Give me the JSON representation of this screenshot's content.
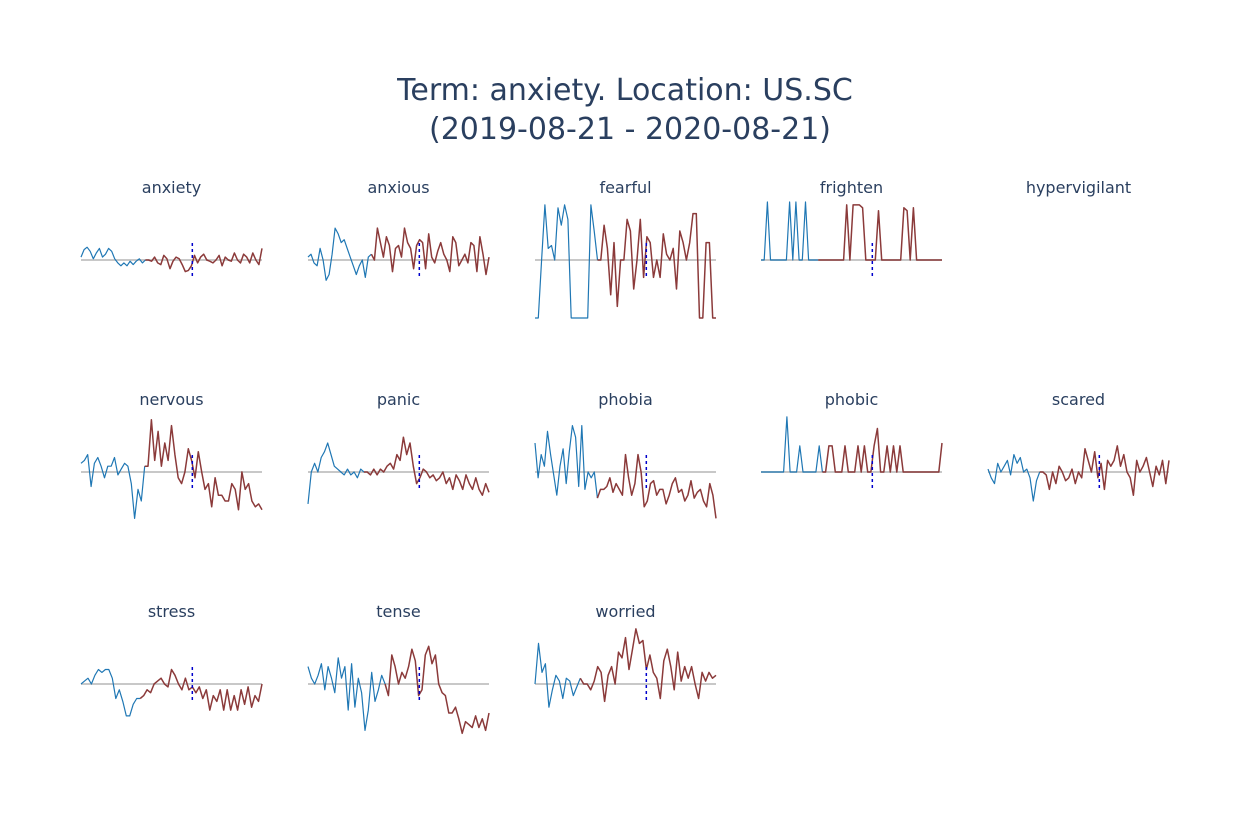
{
  "title": {
    "line1": "Term: anxiety. Location: US.SC",
    "line2": "(2019-08-21 - 2020-08-21)"
  },
  "colors": {
    "before": "#1f77b4",
    "after": "#8b3a3a",
    "baseline": "#c8c8c8",
    "marker": "#0000cc",
    "title": "#2a3f5f"
  },
  "chart_data": {
    "type": "line",
    "layout": "small-multiples",
    "x": [
      "2019-08-21",
      "2020-08-21"
    ],
    "shared_x_range": [
      "2019-08-21",
      "2020-08-21"
    ],
    "y_range": [
      -1,
      1
    ],
    "marker_dashed_vertical": true,
    "panels": [
      {
        "name": "anxiety",
        "before": [
          0.05,
          0.18,
          0.22,
          0.15,
          0.02,
          0.12,
          0.2,
          0.05,
          0.1,
          0.2,
          0.15,
          0.02,
          -0.05,
          -0.1,
          -0.05,
          -0.1,
          -0.02,
          -0.08,
          -0.02,
          0.02,
          -0.05,
          0.0
        ],
        "after": [
          0.0,
          -0.02,
          0.05,
          -0.05,
          -0.08,
          0.08,
          0.02,
          -0.15,
          -0.02,
          0.05,
          0.02,
          -0.08,
          -0.2,
          -0.18,
          -0.1,
          0.08,
          -0.05,
          0.05,
          0.1,
          0.0,
          -0.02,
          -0.05,
          0.0,
          0.08,
          -0.1,
          0.05,
          0.0,
          -0.02,
          0.12,
          0.0,
          -0.05,
          0.1,
          0.05,
          -0.05,
          0.12,
          0.0,
          -0.08,
          0.2
        ]
      },
      {
        "name": "anxious",
        "before": [
          0.05,
          0.1,
          -0.05,
          -0.1,
          0.2,
          0.0,
          -0.35,
          -0.25,
          0.1,
          0.55,
          0.45,
          0.3,
          0.35,
          0.2,
          0.05,
          -0.1,
          -0.25,
          -0.1,
          0.0,
          -0.3,
          0.05,
          0.1
        ],
        "after": [
          0.0,
          0.55,
          0.3,
          0.05,
          0.4,
          0.25,
          -0.2,
          0.2,
          0.25,
          0.05,
          0.55,
          0.3,
          0.2,
          -0.15,
          0.25,
          0.35,
          0.3,
          -0.15,
          0.45,
          0.05,
          -0.05,
          0.15,
          0.3,
          0.1,
          0.0,
          -0.2,
          0.4,
          0.3,
          -0.1,
          0.0,
          0.1,
          -0.05,
          0.3,
          0.25,
          -0.2,
          0.4,
          0.1,
          -0.25,
          0.05
        ]
      },
      {
        "name": "fearful",
        "before": [
          -1.0,
          -1.0,
          0.0,
          0.95,
          0.2,
          0.25,
          0.0,
          0.9,
          0.6,
          0.95,
          0.7,
          -1.0,
          -1.0,
          -1.0,
          -1.0,
          -1.0,
          -1.0,
          0.95,
          0.5,
          0.0
        ],
        "after": [
          0.0,
          0.6,
          0.2,
          -0.6,
          0.3,
          -0.8,
          0.0,
          0.0,
          0.7,
          0.5,
          -0.5,
          0.0,
          0.7,
          -0.3,
          0.4,
          0.3,
          -0.3,
          0.0,
          -0.3,
          0.45,
          0.1,
          0.0,
          0.2,
          -0.5,
          0.5,
          0.3,
          0.0,
          0.3,
          0.8,
          0.8,
          -1.0,
          -1.0,
          0.3,
          0.3,
          -1.0,
          -1.0
        ]
      },
      {
        "name": "frighten",
        "before": [
          0.0,
          0.0,
          1.0,
          0.0,
          0.0,
          0.0,
          0.0,
          0.0,
          0.0,
          1.0,
          0.0,
          1.0,
          0.0,
          0.0,
          1.0,
          0.0,
          0.0,
          0.0,
          0.0
        ],
        "after": [
          0.0,
          0.0,
          0.0,
          0.0,
          0.0,
          0.0,
          0.0,
          0.0,
          0.95,
          0.0,
          0.95,
          0.95,
          0.95,
          0.9,
          0.0,
          0.0,
          0.0,
          0.0,
          0.85,
          0.0,
          0.0,
          0.0,
          0.0,
          0.0,
          0.0,
          0.0,
          0.9,
          0.85,
          0.0,
          0.9,
          0.0,
          0.0,
          0.0,
          0.0,
          0.0,
          0.0,
          0.0,
          0.0,
          0.0
        ]
      },
      {
        "name": "hypervigilant",
        "before": [],
        "after": []
      },
      {
        "name": "nervous",
        "before": [
          0.15,
          0.2,
          0.3,
          -0.25,
          0.15,
          0.25,
          0.1,
          -0.1,
          0.1,
          0.1,
          0.25,
          -0.05,
          0.05,
          0.15,
          0.1,
          -0.2,
          -0.8,
          -0.3,
          -0.5,
          0.1
        ],
        "after": [
          0.1,
          0.9,
          0.2,
          0.7,
          0.1,
          0.5,
          0.2,
          0.8,
          0.3,
          -0.1,
          -0.2,
          0.0,
          0.4,
          0.2,
          -0.1,
          0.35,
          0.0,
          -0.3,
          -0.2,
          -0.6,
          -0.1,
          -0.4,
          -0.4,
          -0.5,
          -0.5,
          -0.2,
          -0.3,
          -0.65,
          0.0,
          -0.3,
          -0.2,
          -0.5,
          -0.6,
          -0.55,
          -0.65
        ]
      },
      {
        "name": "panic",
        "before": [
          -0.55,
          0.0,
          0.15,
          0.0,
          0.25,
          0.35,
          0.5,
          0.3,
          0.1,
          0.05,
          0.0,
          -0.05,
          0.05,
          -0.05,
          0.0,
          -0.1,
          0.05,
          0.0
        ],
        "after": [
          0.0,
          -0.05,
          0.05,
          -0.05,
          0.05,
          0.0,
          0.1,
          0.15,
          0.05,
          0.3,
          0.2,
          0.6,
          0.3,
          0.5,
          0.1,
          -0.2,
          -0.1,
          0.05,
          0.0,
          -0.1,
          -0.05,
          -0.15,
          -0.1,
          0.0,
          -0.2,
          -0.1,
          -0.3,
          -0.05,
          -0.15,
          -0.3,
          -0.05,
          -0.2,
          -0.3,
          -0.1,
          -0.3,
          -0.4,
          -0.2,
          -0.35
        ]
      },
      {
        "name": "phobia",
        "before": [
          0.5,
          -0.1,
          0.3,
          0.1,
          0.7,
          0.3,
          -0.05,
          -0.4,
          0.1,
          0.4,
          -0.2,
          0.35,
          0.8,
          0.6,
          -0.25,
          0.8,
          -0.3,
          0.0,
          -0.1,
          0.0,
          -0.45
        ],
        "after": [
          -0.3,
          -0.3,
          -0.25,
          -0.1,
          -0.35,
          -0.2,
          -0.3,
          -0.4,
          0.3,
          -0.1,
          -0.4,
          -0.2,
          0.3,
          0.0,
          -0.6,
          -0.5,
          -0.2,
          -0.15,
          -0.4,
          -0.3,
          -0.3,
          -0.55,
          -0.4,
          -0.2,
          -0.1,
          -0.35,
          -0.3,
          -0.5,
          -0.4,
          -0.15,
          -0.45,
          -0.35,
          -0.3,
          -0.5,
          -0.6,
          -0.2,
          -0.4,
          -0.8
        ]
      },
      {
        "name": "phobic",
        "before": [
          0.0,
          0.0,
          0.0,
          0.0,
          0.0,
          0.0,
          0.0,
          0.0,
          0.95,
          0.0,
          0.0,
          0.0,
          0.45,
          0.0,
          0.0,
          0.0,
          0.0,
          0.0,
          0.45,
          0.0
        ],
        "after": [
          0.0,
          0.45,
          0.45,
          0.0,
          0.0,
          0.0,
          0.45,
          0.0,
          0.0,
          0.0,
          0.45,
          0.0,
          0.45,
          0.0,
          0.0,
          0.45,
          0.75,
          0.0,
          0.0,
          0.45,
          0.0,
          0.45,
          0.0,
          0.45,
          0.0,
          0.0,
          0.0,
          0.0,
          0.0,
          0.0,
          0.0,
          0.0,
          0.0,
          0.0,
          0.0,
          0.0,
          0.5
        ]
      },
      {
        "name": "scared",
        "before": [
          0.05,
          -0.1,
          -0.2,
          0.15,
          0.0,
          0.1,
          0.2,
          -0.05,
          0.3,
          0.15,
          0.25,
          0.0,
          0.05,
          -0.1,
          -0.5,
          -0.15,
          0.0
        ],
        "after": [
          0.0,
          -0.05,
          -0.3,
          0.0,
          -0.2,
          0.1,
          0.0,
          -0.15,
          -0.1,
          0.05,
          -0.2,
          0.0,
          -0.1,
          0.4,
          0.2,
          0.0,
          0.35,
          -0.1,
          0.15,
          -0.3,
          0.2,
          0.1,
          0.2,
          0.45,
          0.1,
          0.3,
          0.0,
          -0.1,
          -0.4,
          0.2,
          0.0,
          0.1,
          0.25,
          0.0,
          -0.25,
          0.1,
          -0.05,
          0.2,
          -0.2,
          0.2
        ]
      },
      {
        "name": "stress",
        "before": [
          0.0,
          0.05,
          0.1,
          0.0,
          0.15,
          0.25,
          0.2,
          0.25,
          0.25,
          0.1,
          -0.25,
          -0.1,
          -0.3,
          -0.55,
          -0.55,
          -0.35,
          -0.25,
          -0.25
        ],
        "after": [
          -0.2,
          -0.1,
          -0.15,
          0.0,
          0.05,
          0.1,
          0.0,
          -0.05,
          0.25,
          0.15,
          0.0,
          -0.1,
          0.1,
          -0.1,
          -0.05,
          -0.15,
          -0.05,
          -0.25,
          -0.1,
          -0.45,
          -0.2,
          -0.3,
          -0.1,
          -0.45,
          -0.1,
          -0.45,
          -0.2,
          -0.45,
          -0.1,
          -0.35,
          -0.05,
          -0.4,
          -0.2,
          -0.3,
          0.0
        ]
      },
      {
        "name": "tense",
        "before": [
          0.3,
          0.1,
          0.0,
          0.15,
          0.35,
          -0.1,
          0.3,
          0.1,
          -0.15,
          0.45,
          0.1,
          0.3,
          -0.45,
          0.35,
          -0.4,
          0.1,
          -0.15,
          -0.8,
          -0.45,
          0.2,
          -0.3,
          -0.1,
          0.15,
          0.0
        ],
        "after": [
          -0.2,
          0.5,
          0.3,
          0.0,
          0.2,
          0.1,
          0.3,
          0.6,
          0.4,
          -0.2,
          -0.1,
          0.5,
          0.65,
          0.35,
          0.5,
          0.0,
          -0.15,
          -0.2,
          -0.5,
          -0.5,
          -0.4,
          -0.6,
          -0.85,
          -0.65,
          -0.7,
          -0.75,
          -0.55,
          -0.75,
          -0.6,
          -0.8,
          -0.5
        ]
      },
      {
        "name": "worried",
        "before": [
          0.0,
          0.7,
          0.2,
          0.35,
          -0.4,
          -0.1,
          0.15,
          0.05,
          -0.25,
          0.1,
          0.05,
          -0.2,
          -0.05,
          0.1
        ],
        "after": [
          0.0,
          0.0,
          -0.1,
          0.05,
          0.3,
          0.2,
          -0.3,
          0.15,
          0.3,
          0.0,
          0.55,
          0.45,
          0.8,
          0.25,
          0.6,
          0.95,
          0.7,
          0.75,
          0.25,
          0.5,
          0.2,
          0.1,
          -0.25,
          0.4,
          0.6,
          0.3,
          -0.1,
          0.55,
          0.05,
          0.3,
          0.1,
          0.3,
          0.0,
          -0.25,
          0.2,
          0.05,
          0.2,
          0.1,
          0.15
        ]
      }
    ]
  }
}
